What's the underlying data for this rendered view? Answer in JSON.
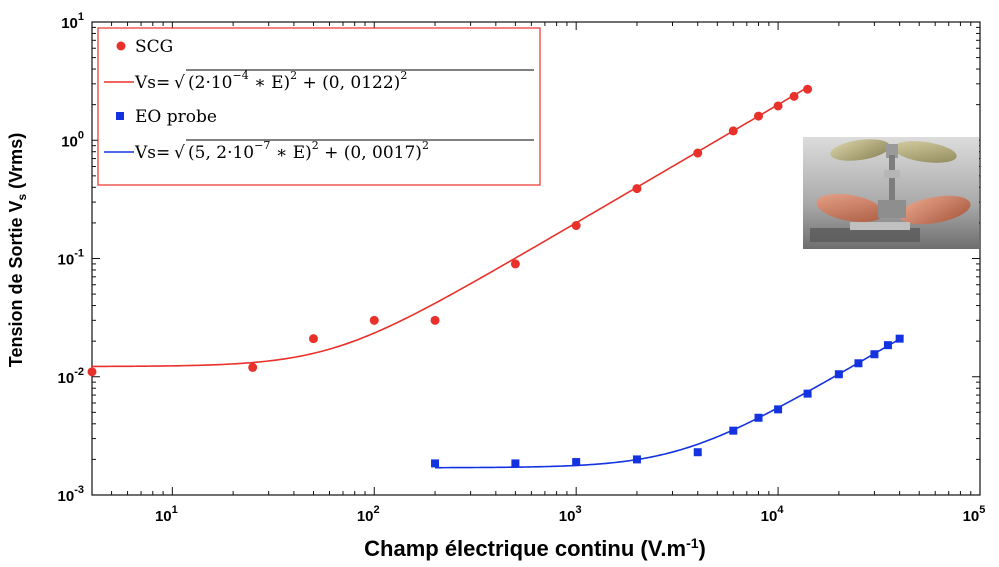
{
  "chart_data": {
    "type": "scatter",
    "xscale": "log",
    "yscale": "log",
    "xlim": [
      4,
      100000
    ],
    "ylim": [
      0.001,
      10
    ],
    "grid": false,
    "legend_position": "top-left",
    "xlabel": "Champ électrique continu (V.m",
    "xlabel_sup": "-1",
    "xlabel_end": ")",
    "ylabel": "Tension de Sortie V",
    "ylabel_sub": "s",
    "ylabel_end": " (Vrms)",
    "x_ticks": [
      {
        "value": 10,
        "base": "10",
        "exp": "1"
      },
      {
        "value": 100,
        "base": "10",
        "exp": "2"
      },
      {
        "value": 1000,
        "base": "10",
        "exp": "3"
      },
      {
        "value": 10000,
        "base": "10",
        "exp": "4"
      },
      {
        "value": 100000,
        "base": "10",
        "exp": "5"
      }
    ],
    "y_ticks": [
      {
        "value": 0.001,
        "base": "10",
        "exp": "-3"
      },
      {
        "value": 0.01,
        "base": "10",
        "exp": "-2"
      },
      {
        "value": 0.1,
        "base": "10",
        "exp": "-1"
      },
      {
        "value": 1,
        "base": "10",
        "exp": "0"
      },
      {
        "value": 10,
        "base": "10",
        "exp": "1"
      }
    ],
    "series": [
      {
        "name": "SCG",
        "kind": "points",
        "marker": "circle",
        "color": "#e8312a",
        "x": [
          4,
          25,
          50,
          100,
          200,
          500,
          1000,
          2000,
          4000,
          6000,
          8000,
          10000,
          12000,
          14000
        ],
        "y": [
          0.011,
          0.012,
          0.021,
          0.03,
          0.03,
          0.09,
          0.19,
          0.39,
          0.78,
          1.2,
          1.6,
          1.95,
          2.35,
          2.7
        ]
      },
      {
        "name": "Vs=√(2·10⁻⁴ ∗ E)² + (0, 0122)²",
        "kind": "fit",
        "color": "#e8312a",
        "a": 0.0002,
        "b": 0.0122,
        "xrange": [
          4,
          14000
        ]
      },
      {
        "name": "EO probe",
        "kind": "points",
        "marker": "square",
        "color": "#1433e0",
        "x": [
          200,
          500,
          1000,
          2000,
          4000,
          6000,
          8000,
          10000,
          14000,
          20000,
          25000,
          30000,
          35000,
          40000
        ],
        "y": [
          0.00185,
          0.00185,
          0.0019,
          0.002,
          0.0023,
          0.0035,
          0.0045,
          0.0053,
          0.0072,
          0.0105,
          0.013,
          0.0155,
          0.0185,
          0.021
        ]
      },
      {
        "name": "Vs=√(5, 2·10⁻⁷ ∗ E)² + (0, 0017)²",
        "kind": "fit",
        "color": "#1433e0",
        "a": 5.2e-07,
        "b": 0.0017,
        "xrange": [
          200,
          40000
        ]
      }
    ],
    "legend": [
      {
        "label": "SCG",
        "type": "marker",
        "marker": "circle",
        "color": "#e8312a"
      },
      {
        "label_pre": "Vs=",
        "label_math": "(2·10",
        "label_sup": "−4",
        "label_rest": " ∗ E)",
        "label_sq": "2",
        "label_plus": " + (0, 0122)",
        "label_sq2": "2",
        "type": "line",
        "color": "#e8312a"
      },
      {
        "label": "EO probe",
        "type": "marker",
        "marker": "square",
        "color": "#1433e0"
      },
      {
        "label_pre": "Vs=",
        "label_math": "(5, 2·10",
        "label_sup": "−7",
        "label_rest": " ∗ E)",
        "label_sq": "2",
        "label_plus": " + (0, 0017)",
        "label_sq2": "2",
        "type": "line",
        "color": "#1433e0"
      }
    ],
    "inset_photo": {
      "name": "sensor-photo"
    }
  }
}
